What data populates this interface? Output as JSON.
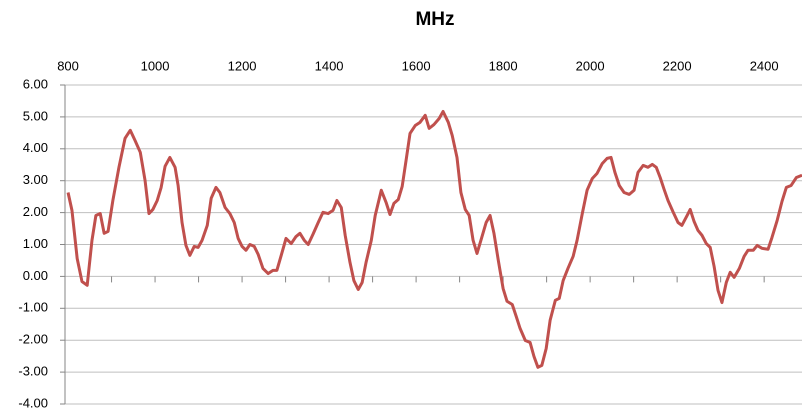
{
  "chart_data": {
    "type": "line",
    "title": "MHz",
    "x": [
      800,
      809,
      821,
      832,
      844,
      855,
      864,
      874,
      883,
      892,
      903,
      917,
      931,
      943,
      954,
      966,
      977,
      986,
      995,
      1005,
      1014,
      1023,
      1034,
      1046,
      1053,
      1062,
      1071,
      1080,
      1090,
      1099,
      1108,
      1120,
      1129,
      1140,
      1149,
      1161,
      1172,
      1182,
      1191,
      1200,
      1209,
      1218,
      1228,
      1237,
      1248,
      1260,
      1271,
      1280,
      1290,
      1301,
      1313,
      1324,
      1333,
      1343,
      1352,
      1363,
      1375,
      1386,
      1398,
      1409,
      1418,
      1428,
      1437,
      1448,
      1457,
      1467,
      1476,
      1485,
      1497,
      1506,
      1520,
      1531,
      1540,
      1549,
      1559,
      1568,
      1577,
      1586,
      1598,
      1609,
      1621,
      1630,
      1641,
      1653,
      1662,
      1674,
      1683,
      1694,
      1703,
      1713,
      1722,
      1731,
      1740,
      1749,
      1761,
      1770,
      1779,
      1789,
      1800,
      1809,
      1821,
      1830,
      1839,
      1851,
      1862,
      1871,
      1880,
      1889,
      1899,
      1908,
      1920,
      1929,
      1938,
      1949,
      1961,
      1970,
      1982,
      1993,
      2005,
      2016,
      2028,
      2039,
      2048,
      2057,
      2067,
      2078,
      2090,
      2101,
      2110,
      2122,
      2133,
      2143,
      2152,
      2161,
      2170,
      2179,
      2191,
      2202,
      2211,
      2223,
      2230,
      2239,
      2248,
      2257,
      2267,
      2276,
      2285,
      2294,
      2303,
      2313,
      2322,
      2331,
      2343,
      2354,
      2363,
      2375,
      2384,
      2395,
      2409,
      2418,
      2430,
      2441,
      2451,
      2462,
      2474,
      2487
    ],
    "series": [
      {
        "name": "MHz",
        "color": "#c0504d",
        "values": [
          2.63,
          2.07,
          0.56,
          -0.16,
          -0.28,
          1.13,
          1.91,
          1.97,
          1.35,
          1.41,
          2.38,
          3.42,
          4.33,
          4.58,
          4.26,
          3.89,
          3.01,
          1.97,
          2.1,
          2.38,
          2.79,
          3.45,
          3.73,
          3.42,
          2.85,
          1.69,
          0.97,
          0.66,
          0.94,
          0.91,
          1.13,
          1.6,
          2.45,
          2.79,
          2.63,
          2.16,
          1.97,
          1.69,
          1.19,
          0.94,
          0.82,
          1.0,
          0.94,
          0.69,
          0.25,
          0.09,
          0.19,
          0.19,
          0.66,
          1.19,
          1.03,
          1.25,
          1.35,
          1.13,
          1.0,
          1.32,
          1.69,
          2.01,
          1.97,
          2.07,
          2.38,
          2.16,
          1.29,
          0.44,
          -0.13,
          -0.41,
          -0.19,
          0.44,
          1.13,
          1.91,
          2.7,
          2.32,
          1.94,
          2.29,
          2.41,
          2.82,
          3.64,
          4.48,
          4.73,
          4.83,
          5.05,
          4.64,
          4.76,
          4.95,
          5.17,
          4.83,
          4.42,
          3.73,
          2.63,
          2.1,
          1.91,
          1.13,
          0.72,
          1.13,
          1.69,
          1.91,
          1.35,
          0.5,
          -0.38,
          -0.78,
          -0.88,
          -1.25,
          -1.63,
          -2.01,
          -2.07,
          -2.51,
          -2.85,
          -2.79,
          -2.26,
          -1.38,
          -0.75,
          -0.69,
          -0.13,
          0.25,
          0.63,
          1.13,
          1.97,
          2.7,
          3.07,
          3.23,
          3.54,
          3.7,
          3.73,
          3.26,
          2.85,
          2.63,
          2.57,
          2.7,
          3.26,
          3.48,
          3.42,
          3.51,
          3.42,
          3.1,
          2.73,
          2.38,
          2.01,
          1.69,
          1.6,
          1.91,
          2.1,
          1.72,
          1.44,
          1.29,
          1.03,
          0.91,
          0.31,
          -0.44,
          -0.82,
          -0.19,
          0.13,
          -0.03,
          0.25,
          0.63,
          0.82,
          0.82,
          0.97,
          0.88,
          0.85,
          1.22,
          1.76,
          2.35,
          2.79,
          2.85,
          3.1,
          3.17
        ]
      }
    ],
    "xlim": [
      793,
      2487
    ],
    "xticks": [
      800,
      1000,
      1200,
      1400,
      1600,
      1800,
      2000,
      2200,
      2400
    ],
    "xminorticks": [
      900,
      1000,
      1100,
      1200,
      1300,
      1400,
      1500,
      1600,
      1700,
      1800,
      1900,
      2000,
      2100,
      2200,
      2300,
      2400
    ],
    "ylim": [
      -4,
      6
    ],
    "yticks": [
      {
        "value": -4,
        "label": "-4.00"
      },
      {
        "value": -3,
        "label": "-3.00"
      },
      {
        "value": -2,
        "label": "-2.00"
      },
      {
        "value": -1,
        "label": "-1.00"
      },
      {
        "value": 0,
        "label": "0.00"
      },
      {
        "value": 1,
        "label": "1.00"
      },
      {
        "value": 2,
        "label": "2.00"
      },
      {
        "value": 3,
        "label": "3.00"
      },
      {
        "value": 4,
        "label": "4.00"
      },
      {
        "value": 5,
        "label": "5.00"
      },
      {
        "value": 6,
        "label": "6.00"
      }
    ],
    "grid": true,
    "x_axis_position": "top"
  }
}
